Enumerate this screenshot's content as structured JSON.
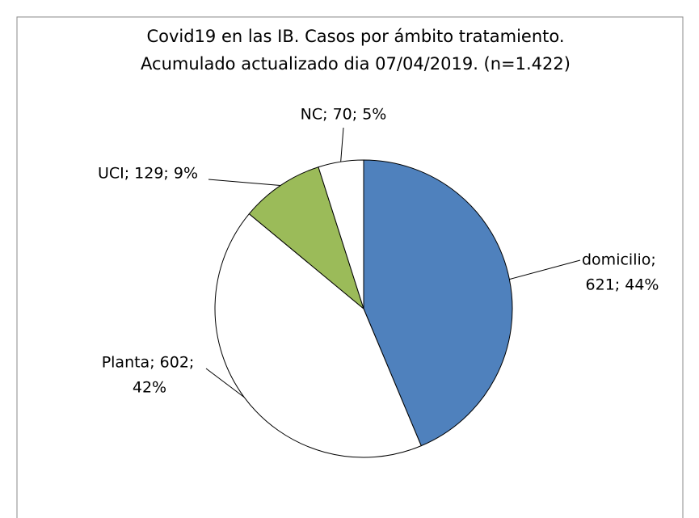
{
  "chart_data": {
    "type": "pie",
    "title": [
      "Covid19 en las IB.  Casos  por ámbito tratamiento.",
      "Acumulado  actualizado  dia 07/04/2019.  (n=1.422)"
    ],
    "values": [
      621,
      602,
      129,
      70
    ],
    "value_labels": [
      [
        "domicilio;",
        "621; 44%"
      ],
      [
        "Planta; 602;",
        "42%"
      ],
      [
        "UCI; 129; 9%"
      ],
      [
        "NC; 70; 5%"
      ]
    ],
    "colors": [
      "#4f81bd",
      "#ffffff",
      "#9bbb59",
      "#ffffff"
    ]
  }
}
